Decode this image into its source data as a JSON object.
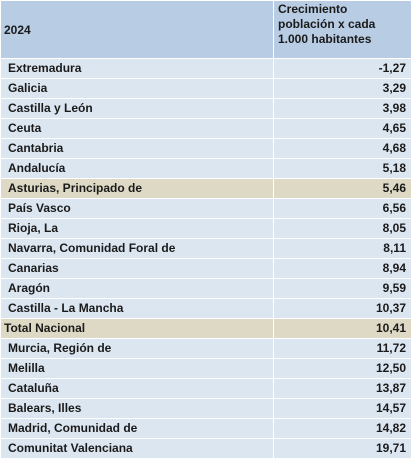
{
  "table": {
    "header": [
      "2024",
      "Crecimiento población x cada 1.000 habitantes"
    ],
    "rows": [
      [
        "Extremadura",
        "-1,27"
      ],
      [
        "Galicia",
        "3,29"
      ],
      [
        "Castilla y León",
        "3,98"
      ],
      [
        "Ceuta",
        "4,65"
      ],
      [
        "Cantabria",
        "4,68"
      ],
      [
        "Andalucía",
        "5,18"
      ],
      [
        "Asturias, Principado de",
        "5,46"
      ],
      [
        "País Vasco",
        "6,56"
      ],
      [
        "Rioja, La",
        "8,05"
      ],
      [
        "Navarra, Comunidad Foral de",
        "8,11"
      ],
      [
        "Canarias",
        "8,94"
      ],
      [
        "Aragón",
        "9,59"
      ],
      [
        "Castilla - La Mancha",
        "10,37"
      ],
      [
        "Total Nacional",
        "10,41"
      ],
      [
        "Murcia, Región de",
        "11,72"
      ],
      [
        "Melilla",
        "12,50"
      ],
      [
        "Cataluña",
        "13,87"
      ],
      [
        "Balears, Illes",
        "14,57"
      ],
      [
        "Madrid, Comunidad de",
        "14,82"
      ],
      [
        "Comunitat Valenciana",
        "19,71"
      ]
    ]
  }
}
